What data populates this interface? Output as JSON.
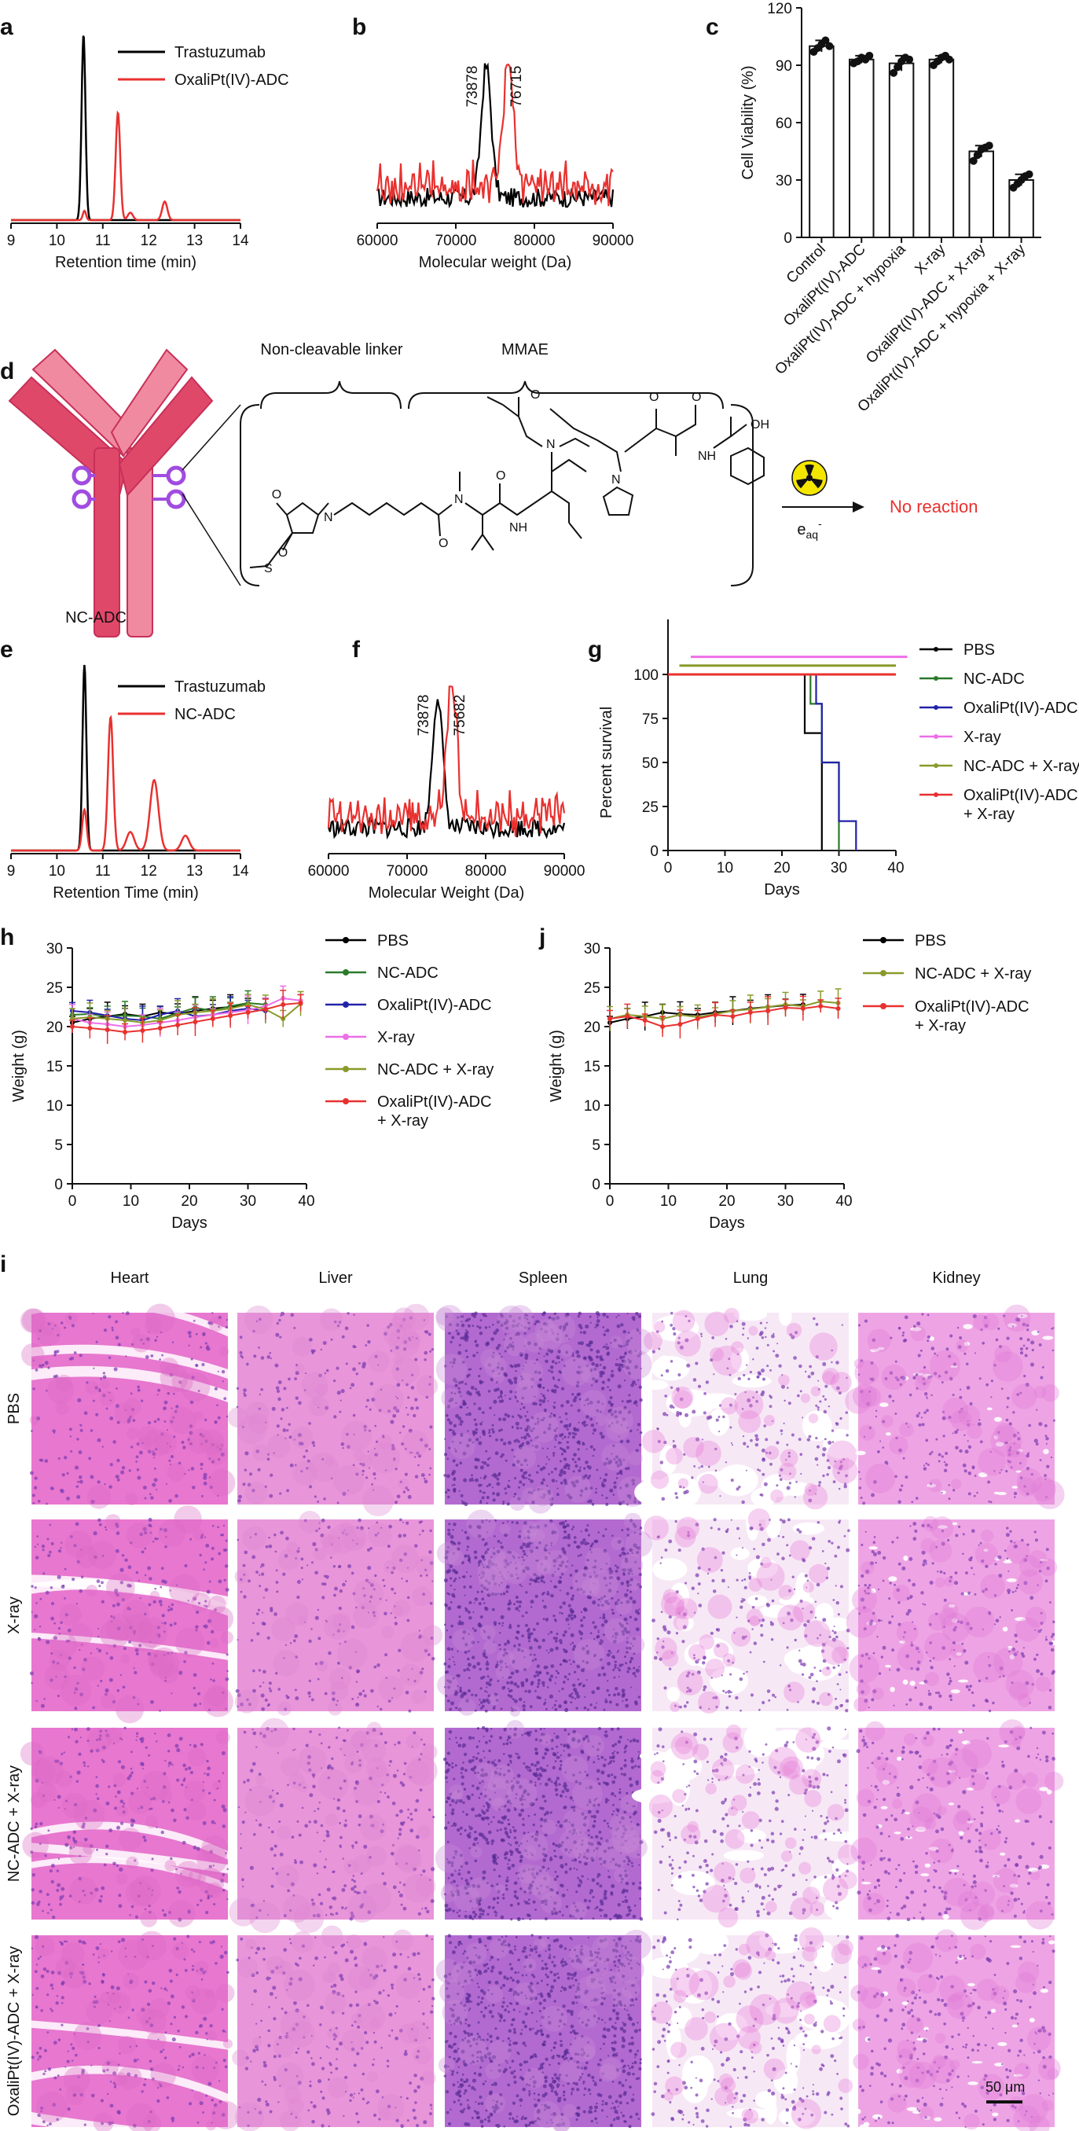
{
  "panels": {
    "a": "a",
    "b": "b",
    "c": "c",
    "d": "d",
    "e": "e",
    "f": "f",
    "g": "g",
    "h": "h",
    "j": "j",
    "i": "i"
  },
  "colors": {
    "black": "#000000",
    "red": "#e8312f",
    "green": "#2a7a2a",
    "blue": "#2222aa",
    "pink": "#ee6ee8",
    "olive": "#8a9a2a",
    "antibody_dark": "#e0486a",
    "antibody_light": "#f08aa0",
    "linker_purple": "#a14ce0",
    "he_pink": "#e07ad8",
    "he_nuclei": "#7a3ab0"
  },
  "chart_data": [
    {
      "id": "a",
      "type": "line",
      "xlabel": "Retention time (min)",
      "ylabel": "",
      "xlim": [
        9,
        14
      ],
      "xticks": [
        9,
        10,
        11,
        12,
        13,
        14
      ],
      "legend": [
        "Trastuzumab",
        "OxaliPt(IV)-ADC"
      ],
      "series": [
        {
          "name": "Trastuzumab",
          "color": "#000000",
          "peaks": [
            {
              "x": 10.58,
              "h": 1.0,
              "w": 0.06
            }
          ]
        },
        {
          "name": "OxaliPt(IV)-ADC",
          "color": "#e8312f",
          "peaks": [
            {
              "x": 10.6,
              "h": 0.05,
              "w": 0.05
            },
            {
              "x": 11.33,
              "h": 0.58,
              "w": 0.07
            },
            {
              "x": 11.6,
              "h": 0.04,
              "w": 0.08
            },
            {
              "x": 12.35,
              "h": 0.1,
              "w": 0.08
            }
          ]
        }
      ]
    },
    {
      "id": "b",
      "type": "line",
      "xlabel": "Molecular weight (Da)",
      "ylabel": "",
      "xlim": [
        60000,
        90000
      ],
      "xticks": [
        60000,
        70000,
        80000,
        90000
      ],
      "annotations": [
        "73878",
        "76715"
      ],
      "series": [
        {
          "name": "Trastuzumab",
          "color": "#000000",
          "peak_x": 73878
        },
        {
          "name": "OxaliPt(IV)-ADC",
          "color": "#e8312f",
          "peak_x": 76715
        }
      ]
    },
    {
      "id": "c",
      "type": "bar",
      "ylabel": "Cell Viability (%)",
      "ylim": [
        0,
        120
      ],
      "yticks": [
        0,
        30,
        60,
        90,
        120
      ],
      "categories": [
        "Control",
        "OxaliPt(IV)-ADC",
        "OxaliPt(IV)-ADC + hypoxia",
        "X-ray",
        "OxaliPt(IV)-ADC + X-ray",
        "OxaliPt(IV)-ADC + hypoxia + X-ray"
      ],
      "values": [
        100,
        93,
        91,
        93,
        45,
        30
      ],
      "errors": [
        3,
        2,
        4,
        2,
        3,
        3
      ],
      "points": [
        [
          97,
          99,
          101,
          103,
          100
        ],
        [
          91,
          92,
          94,
          93,
          95
        ],
        [
          86,
          89,
          92,
          94,
          93
        ],
        [
          90,
          92,
          94,
          95,
          93
        ],
        [
          40,
          43,
          46,
          47,
          48
        ],
        [
          26,
          28,
          30,
          32,
          33
        ]
      ]
    },
    {
      "id": "e",
      "type": "line",
      "xlabel": "Retention Time (min)",
      "ylabel": "",
      "xlim": [
        9,
        14
      ],
      "xticks": [
        9,
        10,
        11,
        12,
        13,
        14
      ],
      "legend": [
        "Trastuzumab",
        "NC-ADC"
      ],
      "series": [
        {
          "name": "Trastuzumab",
          "color": "#000000",
          "peaks": [
            {
              "x": 10.6,
              "h": 1.0,
              "w": 0.06
            }
          ]
        },
        {
          "name": "NC-ADC",
          "color": "#e8312f",
          "peaks": [
            {
              "x": 10.6,
              "h": 0.22,
              "w": 0.07
            },
            {
              "x": 11.17,
              "h": 0.72,
              "w": 0.08
            },
            {
              "x": 11.6,
              "h": 0.1,
              "w": 0.12
            },
            {
              "x": 12.12,
              "h": 0.38,
              "w": 0.13
            },
            {
              "x": 12.8,
              "h": 0.08,
              "w": 0.12
            }
          ]
        }
      ]
    },
    {
      "id": "f",
      "type": "line",
      "xlabel": "Molecular Weight (Da)",
      "ylabel": "",
      "xlim": [
        60000,
        90000
      ],
      "xticks": [
        60000,
        70000,
        80000,
        90000
      ],
      "annotations": [
        "73878",
        "75682"
      ],
      "series": [
        {
          "name": "Trastuzumab",
          "color": "#000000",
          "peak_x": 73878
        },
        {
          "name": "NC-ADC",
          "color": "#e8312f",
          "peak_x": 75682
        }
      ]
    },
    {
      "id": "g",
      "type": "line",
      "xlabel": "Days",
      "ylabel": "Percent survival",
      "xlim": [
        0,
        40
      ],
      "ylim": [
        0,
        100
      ],
      "xticks": [
        0,
        10,
        20,
        30,
        40
      ],
      "yticks": [
        0,
        25,
        50,
        75,
        100
      ],
      "series": [
        {
          "name": "PBS",
          "color": "#000000",
          "steps": [
            [
              0,
              100
            ],
            [
              24,
              100
            ],
            [
              24,
              66.7
            ],
            [
              27,
              66.7
            ],
            [
              27,
              0
            ]
          ]
        },
        {
          "name": "NC-ADC",
          "color": "#2a7a2a",
          "steps": [
            [
              0,
              100
            ],
            [
              25,
              100
            ],
            [
              25,
              83.3
            ],
            [
              27,
              83.3
            ],
            [
              27,
              50
            ],
            [
              30,
              50
            ],
            [
              30,
              0
            ]
          ]
        },
        {
          "name": "OxaliPt(IV)-ADC",
          "color": "#2222aa",
          "steps": [
            [
              0,
              100
            ],
            [
              26,
              100
            ],
            [
              26,
              83.3
            ],
            [
              27,
              83.3
            ],
            [
              27,
              50
            ],
            [
              30,
              50
            ],
            [
              30,
              16.7
            ],
            [
              33,
              16.7
            ],
            [
              33,
              0
            ]
          ]
        },
        {
          "name": "X-ray",
          "color": "#ee6ee8",
          "steps": [
            [
              4,
              110
            ],
            [
              42,
              110
            ]
          ]
        },
        {
          "name": "NC-ADC + X-ray",
          "color": "#8a9a2a",
          "steps": [
            [
              2,
              105
            ],
            [
              40,
              105
            ]
          ]
        },
        {
          "name": "OxaliPt(IV)-ADC\n+ X-ray",
          "color": "#e8312f",
          "steps": [
            [
              0,
              100
            ],
            [
              40,
              100
            ]
          ]
        }
      ]
    },
    {
      "id": "h",
      "type": "line",
      "xlabel": "Days",
      "ylabel": "Weight (g)",
      "xlim": [
        0,
        40
      ],
      "ylim": [
        0,
        30
      ],
      "xticks": [
        0,
        10,
        20,
        30,
        40
      ],
      "yticks": [
        0,
        5,
        10,
        15,
        20,
        25,
        30
      ],
      "series": [
        {
          "name": "PBS",
          "color": "#000000",
          "x": [
            0,
            3,
            6,
            9,
            12,
            15,
            18,
            21,
            24,
            27,
            30
          ],
          "y": [
            20.5,
            21,
            21.3,
            21.6,
            21.3,
            21.8,
            21.6,
            22,
            22.3,
            22.5,
            22.8
          ]
        },
        {
          "name": "NC-ADC",
          "color": "#2a7a2a",
          "x": [
            0,
            3,
            6,
            9,
            12,
            15,
            18,
            21,
            24,
            27,
            30,
            33
          ],
          "y": [
            21.5,
            21.6,
            21.3,
            21.4,
            21.3,
            21,
            21.7,
            22.4,
            22,
            22.6,
            23,
            22.8
          ]
        },
        {
          "name": "OxaliPt(IV)-ADC",
          "color": "#2222aa",
          "x": [
            0,
            3,
            6,
            9,
            12,
            15,
            18,
            21,
            24,
            27,
            30,
            33
          ],
          "y": [
            22,
            21.8,
            21.4,
            21,
            20.8,
            21.5,
            22,
            21.3,
            21.5,
            22,
            22.3,
            22
          ]
        },
        {
          "name": "X-ray",
          "color": "#ee6ee8",
          "x": [
            0,
            3,
            6,
            9,
            12,
            15,
            18,
            21,
            24,
            27,
            30,
            33,
            36,
            39
          ],
          "y": [
            21,
            20.5,
            20.3,
            20,
            20.2,
            20.5,
            20.8,
            21.2,
            21.5,
            21.8,
            22.1,
            22.6,
            23.6,
            23.3
          ]
        },
        {
          "name": "NC-ADC + X-ray",
          "color": "#8a9a2a",
          "x": [
            0,
            3,
            6,
            9,
            12,
            15,
            18,
            21,
            24,
            27,
            30,
            33,
            36,
            39
          ],
          "y": [
            21,
            21.2,
            21,
            20.8,
            20.5,
            20.8,
            21.5,
            21.8,
            22,
            22.3,
            22.8,
            22.2,
            21,
            22.9
          ]
        },
        {
          "name": "OxaliPt(IV)-ADC\n+ X-ray",
          "color": "#e8312f",
          "x": [
            0,
            3,
            6,
            9,
            12,
            15,
            18,
            21,
            24,
            27,
            30,
            33,
            36,
            39
          ],
          "y": [
            20,
            19.8,
            19.6,
            19.3,
            19.5,
            19.8,
            20.2,
            20.6,
            21,
            21.4,
            21.8,
            22.2,
            22.8,
            23
          ]
        }
      ]
    },
    {
      "id": "j",
      "type": "line",
      "xlabel": "Days",
      "ylabel": "Weight (g)",
      "xlim": [
        0,
        40
      ],
      "ylim": [
        0,
        30
      ],
      "xticks": [
        0,
        10,
        20,
        30,
        40
      ],
      "yticks": [
        0,
        5,
        10,
        15,
        20,
        25,
        30
      ],
      "series": [
        {
          "name": "PBS",
          "color": "#000000",
          "x": [
            0,
            3,
            6,
            9,
            12,
            15,
            18,
            21,
            24,
            27,
            30,
            33
          ],
          "y": [
            20.5,
            21,
            21.3,
            21.8,
            21.6,
            21.5,
            21.8,
            22,
            22.3,
            22.5,
            22.7,
            22.8
          ]
        },
        {
          "name": "NC-ADC + X-ray",
          "color": "#8a9a2a",
          "x": [
            0,
            3,
            6,
            9,
            12,
            15,
            18,
            21,
            24,
            27,
            30,
            33,
            36,
            39
          ],
          "y": [
            21,
            21.5,
            21.3,
            21,
            21.5,
            21.2,
            21.6,
            22,
            22.2,
            22.5,
            22.8,
            22.6,
            23.2,
            23
          ]
        },
        {
          "name": "OxaliPt(IV)-ADC\n+ X-ray",
          "color": "#e8312f",
          "x": [
            0,
            3,
            6,
            9,
            12,
            15,
            18,
            21,
            24,
            27,
            30,
            33,
            36,
            39
          ],
          "y": [
            21,
            21.3,
            20.8,
            20,
            20.3,
            21,
            21.5,
            21.3,
            21.8,
            22,
            22.4,
            22.3,
            22.6,
            22.3
          ]
        }
      ]
    }
  ],
  "scheme_d": {
    "linker_label": "Non-cleavable linker",
    "payload_label": "MMAE",
    "adc_name": "NC-ADC",
    "result": "No reaction",
    "reagent": "e",
    "reagent_sub": "aq",
    "reagent_sup": "-",
    "radiation_icon": "radiation-icon"
  },
  "histology": {
    "columns": [
      "Heart",
      "Liver",
      "Spleen",
      "Lung",
      "Kidney"
    ],
    "rows": [
      "PBS",
      "X-ray",
      "NC-ADC + X-ray",
      "OxaliPt(IV)-ADC + X-ray"
    ],
    "scale_bar": "50 μm"
  }
}
